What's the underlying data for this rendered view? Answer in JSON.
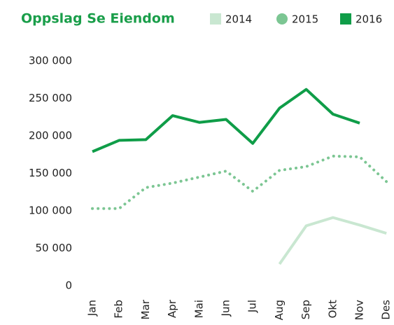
{
  "chart_data": {
    "type": "line",
    "title": "Oppslag Se Eiendom",
    "categories": [
      "Jan",
      "Feb",
      "Mar",
      "Apr",
      "Mai",
      "Jun",
      "Jul",
      "Aug",
      "Sep",
      "Okt",
      "Nov",
      "Des"
    ],
    "series": [
      {
        "name": "2014",
        "color": "#c9e7d1",
        "style": "solid",
        "marker": "square",
        "values": [
          null,
          null,
          null,
          null,
          null,
          null,
          null,
          29000,
          80000,
          91000,
          81000,
          70000
        ]
      },
      {
        "name": "2015",
        "color": "#7cc693",
        "style": "dotted",
        "marker": "circle",
        "values": [
          103000,
          103000,
          131000,
          137000,
          145000,
          153000,
          126000,
          154000,
          159000,
          173000,
          172000,
          139000
        ]
      },
      {
        "name": "2016",
        "color": "#0f9d48",
        "style": "solid",
        "marker": "square",
        "values": [
          179000,
          194000,
          195000,
          227000,
          218000,
          222000,
          190000,
          237000,
          262000,
          229000,
          217000,
          null
        ]
      }
    ],
    "ylim": [
      0,
      300000
    ],
    "yticks": [
      0,
      {
        "value": 50000,
        "label": "50 000"
      },
      {
        "value": 100000,
        "label": "100 000"
      },
      {
        "value": 150000,
        "label": "150 000"
      },
      {
        "value": 200000,
        "label": "200 000"
      },
      {
        "value": 250000,
        "label": "250 000"
      },
      {
        "value": 300000,
        "label": "300 000"
      }
    ],
    "grid": false,
    "legend": "top-right"
  }
}
